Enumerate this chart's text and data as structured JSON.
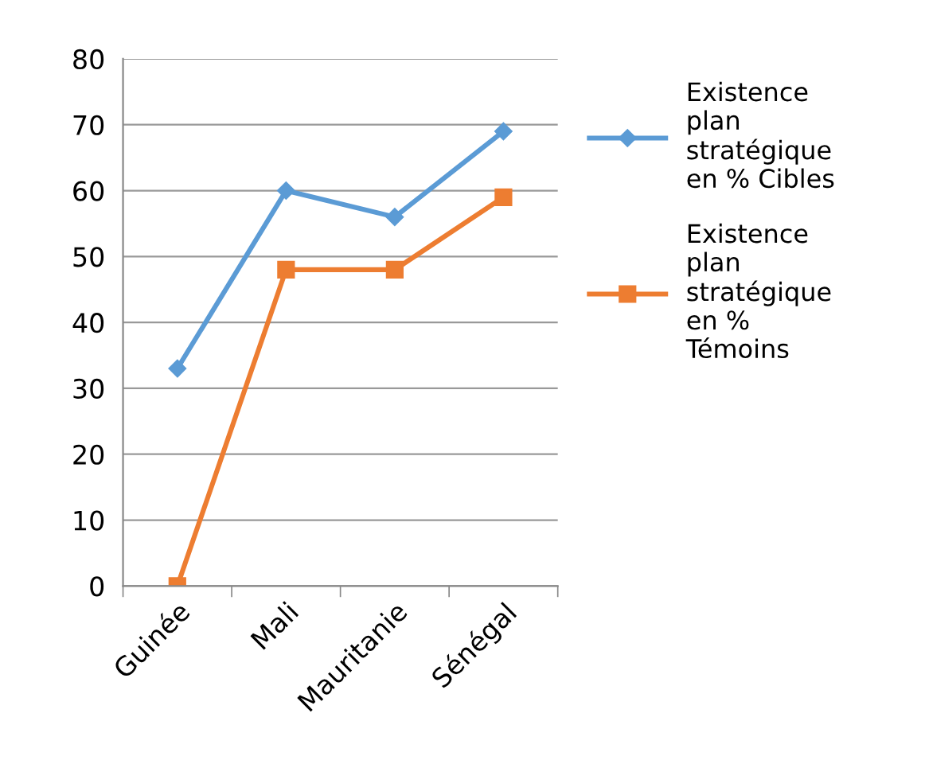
{
  "chart_data": {
    "type": "line",
    "categories": [
      "Guinée",
      "Mali",
      "Mauritanie",
      "Sénégal"
    ],
    "series": [
      {
        "name": "Existence plan stratégique en % Cibles",
        "color": "#5b9bd5",
        "marker": "diamond",
        "values": [
          33,
          60,
          56,
          69
        ]
      },
      {
        "name": "Existence plan stratégique en % Témoins",
        "color": "#ed7d31",
        "marker": "square",
        "values": [
          0,
          48,
          48,
          59
        ]
      }
    ],
    "ylim": [
      0,
      80
    ],
    "yticks": [
      0,
      10,
      20,
      30,
      40,
      50,
      60,
      70,
      80
    ],
    "grid": "y",
    "legend": "right"
  }
}
